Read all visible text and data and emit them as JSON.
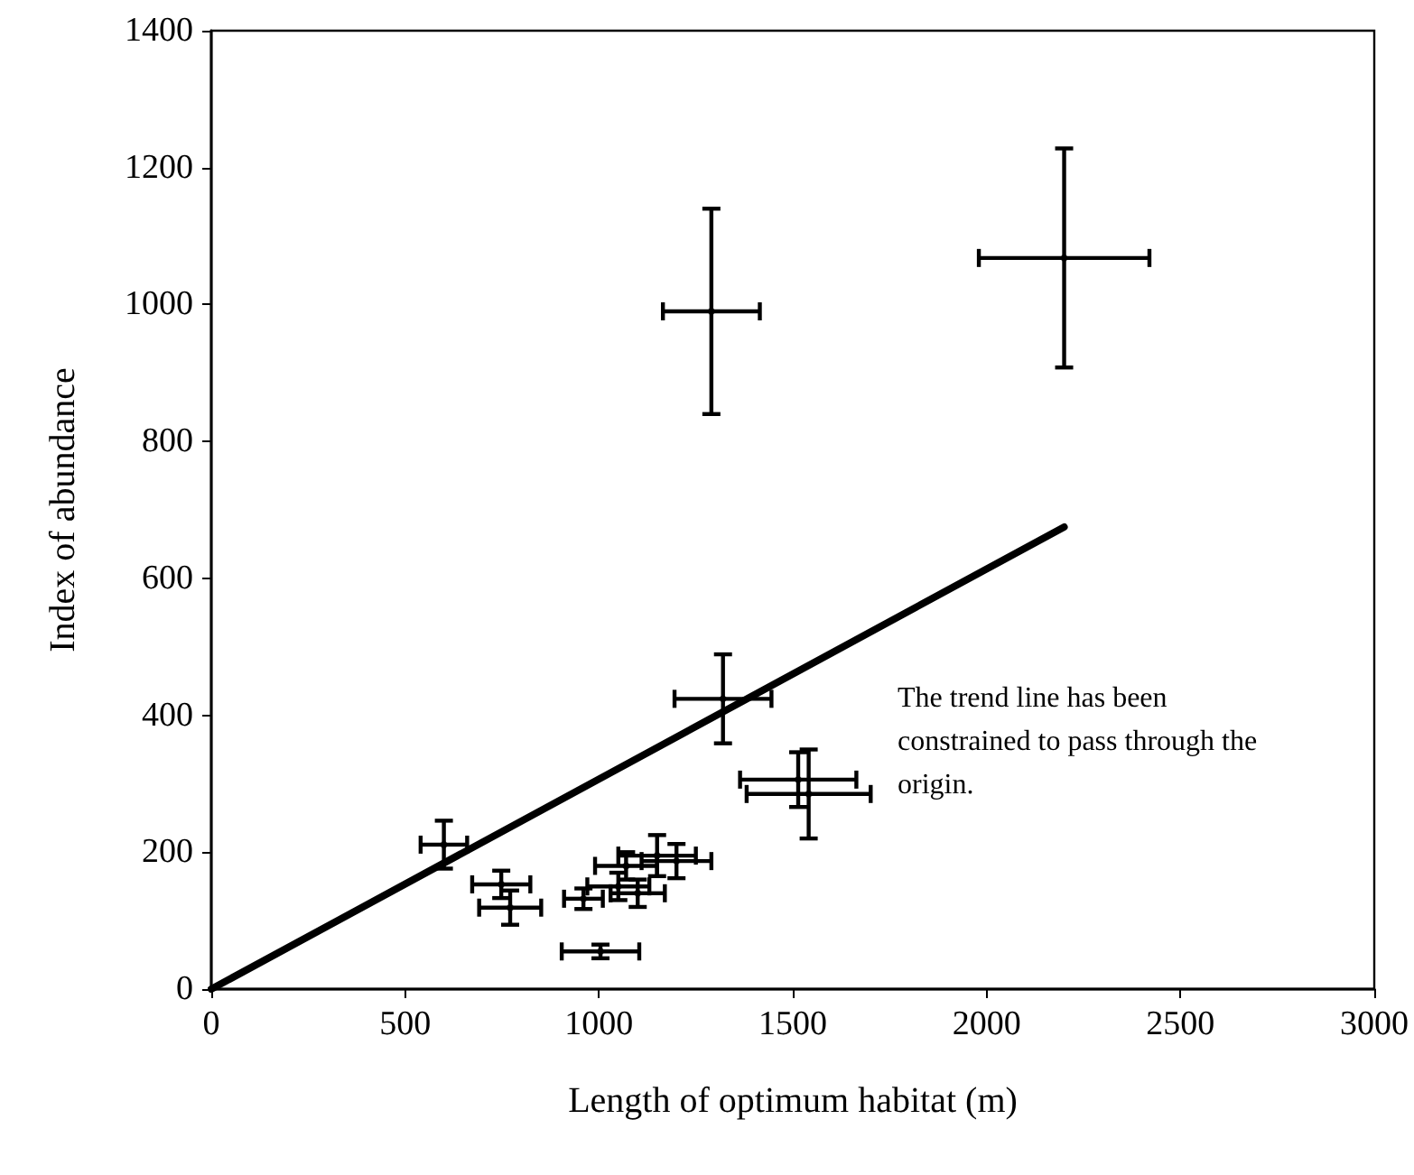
{
  "chart_data": {
    "type": "scatter",
    "xlabel": "Length of optimum habitat (m)",
    "ylabel": "Index of abundance",
    "xlim": [
      0,
      3000
    ],
    "xticks": [
      0,
      500,
      1000,
      1500,
      2000,
      2500,
      3000
    ],
    "ylim": [
      0,
      1400
    ],
    "yticks": [
      0,
      200,
      400,
      600,
      800,
      1000,
      1200,
      1400
    ],
    "grid": false,
    "annotations": [
      "The trend line has been constrained to pass through the origin."
    ],
    "series": [
      {
        "color": "#000000",
        "x": [
          1290,
          2200,
          1320,
          1514,
          1541,
          600,
          748,
          771,
          1004,
          960,
          1070,
          1150,
          1200,
          1050,
          1100
        ],
        "values": [
          990,
          1068,
          424,
          306,
          285,
          211,
          153,
          119,
          55,
          132,
          180,
          195,
          187,
          150,
          140
        ],
        "errors": [
          150,
          160,
          65,
          40,
          65,
          35,
          20,
          25,
          10,
          15,
          20,
          30,
          25,
          20,
          20
        ],
        "xerrors": [
          125,
          220,
          125,
          150,
          160,
          60,
          75,
          80,
          100,
          50,
          80,
          100,
          90,
          80,
          70
        ]
      },
      {
        "type": "line",
        "color": "#000000",
        "x": [
          0,
          2200
        ],
        "values": [
          0,
          675
        ],
        "line_style": "solid"
      }
    ]
  }
}
